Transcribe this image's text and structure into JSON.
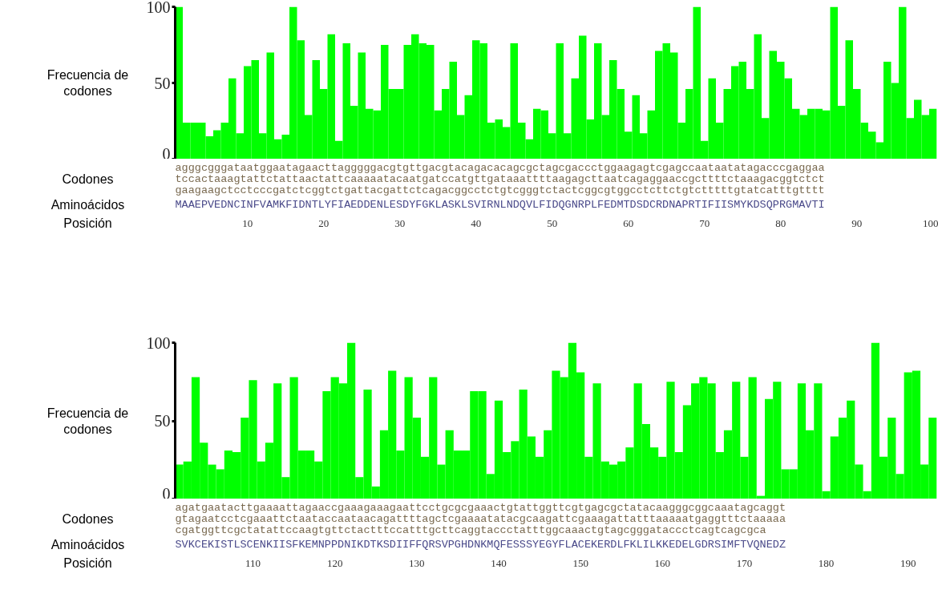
{
  "chart_data": [
    {
      "type": "bar",
      "ylabel": "Frecuencia de codones",
      "x": [
        1,
        2,
        3,
        4,
        5,
        6,
        7,
        8,
        9,
        10,
        11,
        12,
        13,
        14,
        15,
        16,
        17,
        18,
        19,
        20,
        21,
        22,
        23,
        24,
        25,
        26,
        27,
        28,
        29,
        30,
        31,
        32,
        33,
        34,
        35,
        36,
        37,
        38,
        39,
        40,
        41,
        42,
        43,
        44,
        45,
        46,
        47,
        48,
        49,
        50,
        51,
        52,
        53,
        54,
        55,
        56,
        57,
        58,
        59,
        60,
        61,
        62,
        63,
        64,
        65,
        66,
        67,
        68,
        69,
        70,
        71,
        72,
        73,
        74,
        75,
        76,
        77,
        78,
        79,
        80,
        81,
        82,
        83,
        84,
        85,
        86,
        87,
        88,
        89,
        90,
        91,
        92,
        93,
        94,
        95,
        96,
        97,
        98,
        99,
        100
      ],
      "series": [
        {
          "color": "#00ff00",
          "values": [
            100,
            24,
            24,
            24,
            15,
            19,
            24,
            53,
            17,
            61,
            65,
            17,
            70,
            13,
            16,
            100,
            78,
            29,
            65,
            46,
            82,
            12,
            76,
            35,
            70,
            33,
            32,
            75,
            46,
            46,
            75,
            82,
            76,
            75,
            32,
            46,
            64,
            29,
            42,
            78,
            76,
            24,
            26,
            21,
            76,
            24,
            13,
            33,
            32,
            17,
            76,
            17,
            53,
            81,
            26,
            76,
            29,
            65,
            46,
            18,
            42,
            17,
            32,
            71,
            76,
            70,
            24,
            46,
            100,
            12,
            53,
            24,
            46,
            61,
            64,
            46,
            82,
            27,
            71,
            64,
            53,
            33,
            29,
            33,
            33,
            32,
            100,
            35,
            78,
            46,
            24,
            18,
            11,
            64,
            50,
            100,
            27,
            39,
            29,
            33
          ]
        }
      ],
      "xlim": [
        0.5,
        100.5
      ],
      "xticks": [
        10,
        20,
        30,
        40,
        50,
        60,
        70,
        80,
        90,
        100
      ],
      "ylim": [
        0,
        100
      ],
      "yticks": [
        0,
        50,
        100
      ],
      "annotations": [
        "Codones",
        "agggcgggataatggaatagaacttagggggacgtgttgacgtacagacacagcgctagcgaccctggaagagtcgagccaataatatagacccgaggaa",
        "tccactaaagtattctattaactattcaaaaatacaatgatccatgttgataaattttaagagcttaatcagaggaaccgcttttctaaagacggtctct",
        "gaagaagctcctcccgatctcggtctgattacgattctcagacggcctctgtcgggtctactcggcgtggcctcttctgtctttttgtatcatttgtttt",
        "Aminoácidos",
        "MAAEPVEDNCINFVAMKFIDNTLYFIAEDDENLESDYFGKLASKLSVIRNLNDQVLFIDQGNRPLFEDMTDSDCRDNAPRTIFIISMYKDSQPRGMAVTI",
        "Posición"
      ]
    },
    {
      "type": "bar",
      "ylabel": "Frecuencia de codones",
      "x": [
        101,
        102,
        103,
        104,
        105,
        106,
        107,
        108,
        109,
        110,
        111,
        112,
        113,
        114,
        115,
        116,
        117,
        118,
        119,
        120,
        121,
        122,
        123,
        124,
        125,
        126,
        127,
        128,
        129,
        130,
        131,
        132,
        133,
        134,
        135,
        136,
        137,
        138,
        139,
        140,
        141,
        142,
        143,
        144,
        145,
        146,
        147,
        148,
        149,
        150,
        151,
        152,
        153,
        154,
        155,
        156,
        157,
        158,
        159,
        160,
        161,
        162,
        163,
        164,
        165,
        166,
        167,
        168,
        169,
        170,
        171,
        172,
        173,
        174,
        175,
        176,
        177,
        178,
        179,
        180,
        181,
        182,
        183,
        184,
        185,
        186,
        187,
        188,
        189,
        190,
        191,
        192,
        193
      ],
      "series": [
        {
          "color": "#00ff00",
          "values": [
            22,
            24,
            78,
            36,
            22,
            19,
            31,
            30,
            52,
            76,
            24,
            36,
            74,
            14,
            78,
            31,
            31,
            24,
            69,
            78,
            74,
            100,
            14,
            70,
            8,
            44,
            82,
            31,
            78,
            52,
            27,
            78,
            22,
            44,
            31,
            31,
            69,
            69,
            16,
            63,
            30,
            37,
            70,
            40,
            27,
            44,
            82,
            78,
            100,
            81,
            27,
            74,
            24,
            22,
            24,
            33,
            74,
            48,
            33,
            27,
            75,
            30,
            60,
            74,
            78,
            74,
            30,
            44,
            75,
            27,
            78,
            2,
            64,
            75,
            19,
            19,
            74,
            44,
            74,
            5,
            40,
            52,
            63,
            22,
            5,
            100,
            27,
            52,
            16,
            81,
            82,
            22,
            52
          ]
        }
      ],
      "xlim": [
        100.5,
        193.5
      ],
      "xticks": [
        110,
        120,
        130,
        140,
        150,
        160,
        170,
        180,
        190
      ],
      "ylim": [
        0,
        100
      ],
      "yticks": [
        0,
        50,
        100
      ],
      "annotations": [
        "Codones",
        "agatgaatacttgaaaattagaaccgaaagaaagaattcctgcgcgaaactgtattggttcgtgagcgctatacaagggcggcaaatagcaggt",
        "gtagaatcctcgaaattctaataccaataacagattttagctcgaaaatatacgcaagattcgaaagattatttaaaaatgaggtttctaaaaa",
        "cgatggttcgctatattccaagtgttctactttccatttgcttcaggtaccctatttggcaaactgtagcgggataccctcagtcagcgca",
        "Aminoácidos",
        "SVKCEKISTLSCENKIISFKEMNPPDNIKDTKSDIIFFQRSVPGHDNKMQFESSSYEGYFLACEKERDLFKLILKKEDELGDRSIMFTVQNEDZ",
        "Posición"
      ]
    }
  ]
}
